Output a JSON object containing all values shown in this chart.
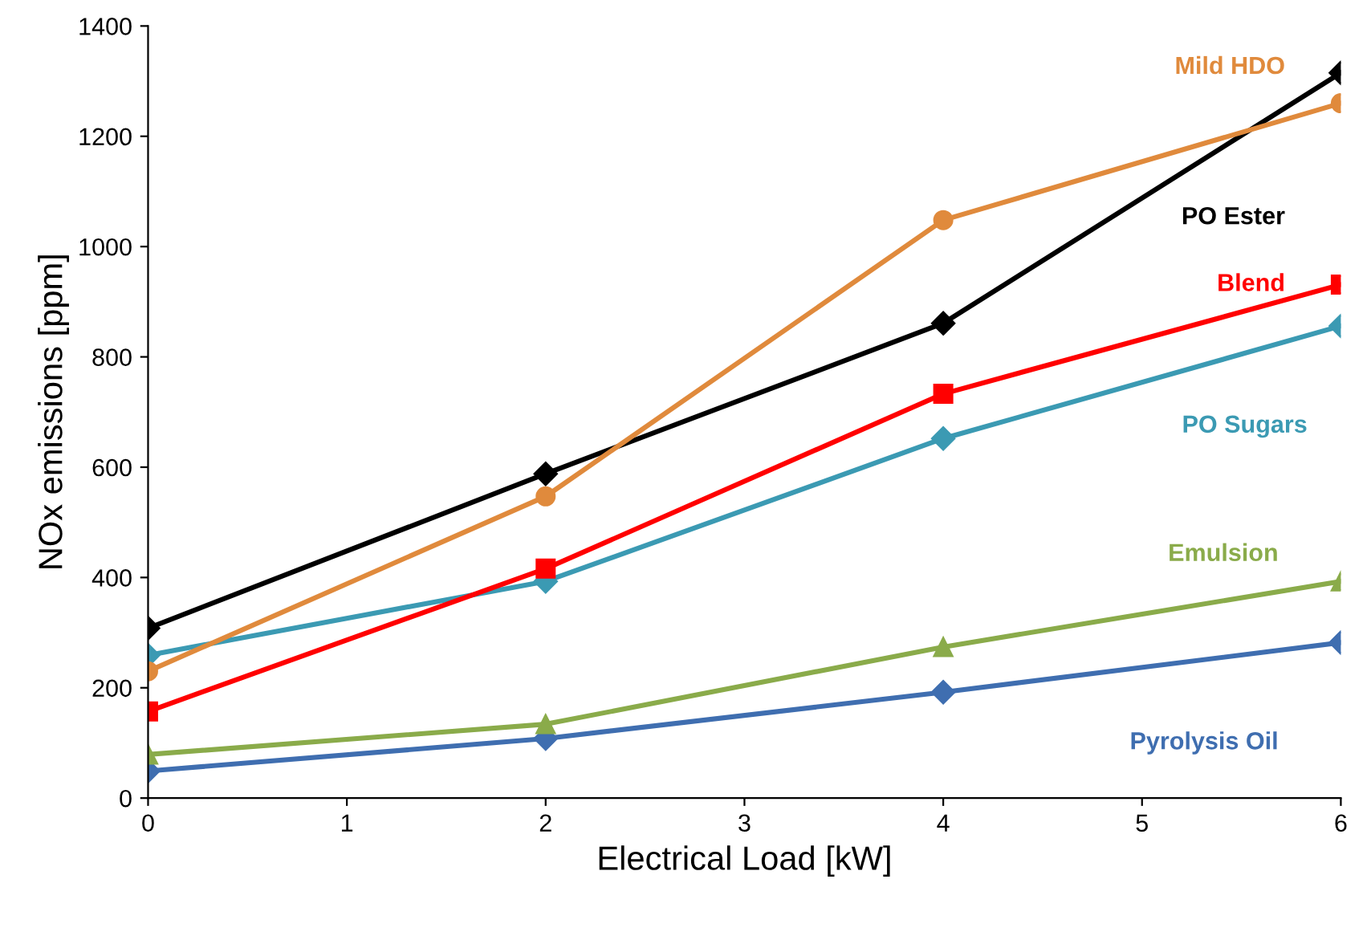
{
  "chart_data": {
    "type": "line",
    "xlabel": "Electrical Load [kW]",
    "ylabel": "NOx emissions [ppm]",
    "x": [
      0,
      2,
      4,
      6
    ],
    "xlim": [
      0,
      6
    ],
    "xticks": [
      0,
      1,
      2,
      3,
      4,
      5,
      6
    ],
    "ylim": [
      0,
      1400
    ],
    "yticks": [
      0,
      200,
      400,
      600,
      800,
      1000,
      1200,
      1400
    ],
    "grid": false,
    "legend": false,
    "line_style": "solid",
    "series": [
      {
        "name": "Pyrolysis Oil",
        "color": "#3f6eb0",
        "marker": "diamond",
        "values": [
          49,
          108,
          192,
          282
        ]
      },
      {
        "name": "Emulsion",
        "color": "#8aab4a",
        "marker": "triangle",
        "values": [
          79,
          134,
          274,
          393
        ]
      },
      {
        "name": "PO Sugars",
        "color": "#3b9ab3",
        "marker": "diamond",
        "values": [
          259,
          393,
          652,
          856
        ]
      },
      {
        "name": "Blend",
        "color": "#ff0000",
        "marker": "square",
        "values": [
          157,
          416,
          733,
          931
        ]
      },
      {
        "name": "PO Ester",
        "color": "#000000",
        "marker": "diamond",
        "values": [
          308,
          588,
          861,
          1315
        ]
      },
      {
        "name": "Mild HDO",
        "color": "#e08a3c",
        "marker": "circle",
        "values": [
          230,
          547,
          1048,
          1260
        ]
      }
    ]
  }
}
